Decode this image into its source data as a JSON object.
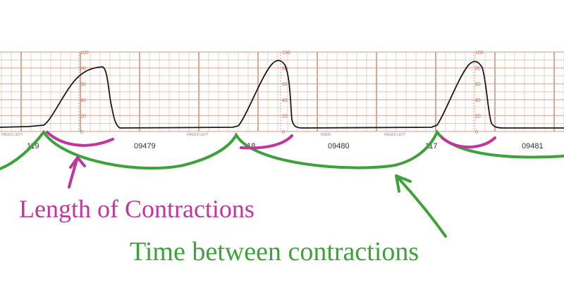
{
  "strip": {
    "scale_labels": [
      "100",
      "80",
      "60",
      "40",
      "20",
      "0"
    ],
    "strip_numbers": [
      {
        "text": "119"
      },
      {
        "text": "09479"
      },
      {
        "text": "118"
      },
      {
        "text": "09480"
      },
      {
        "text": "117"
      },
      {
        "text": "09481"
      }
    ],
    "paper_marks": [
      "PAGES LEFT",
      "PAGES LEFT",
      "50605",
      "PAGES LEFT"
    ]
  },
  "annotations": {
    "length_label": "Length of Contractions",
    "between_label": "Time between contractions"
  },
  "colors": {
    "grid": "#d9a08a",
    "trace": "#1a1a1a",
    "length": "#c2359c",
    "between": "#3ea23a"
  }
}
